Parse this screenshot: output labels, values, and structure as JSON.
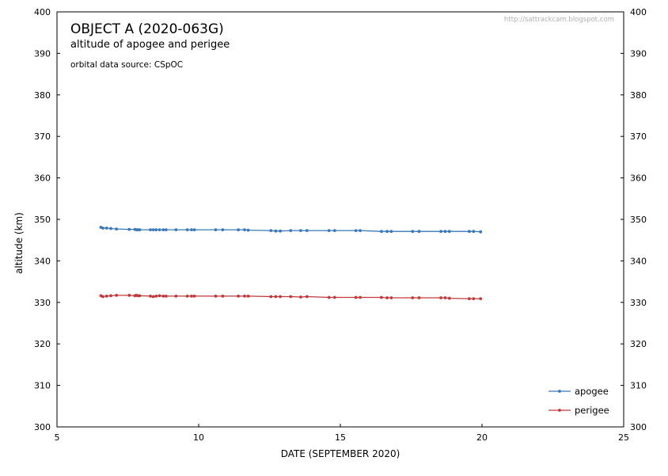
{
  "chart_data": {
    "type": "line",
    "title": "OBJECT A  (2020-063G)",
    "subtitle": "altitude of apogee and perigee",
    "source_note": "orbital data source: CSpOC",
    "watermark": "http://sattrackcam.blogspot.com",
    "xlabel": "DATE  (SEPTEMBER 2020)",
    "ylabel": "altitude (km)",
    "xlim": [
      5,
      25
    ],
    "ylim": [
      300,
      400
    ],
    "x_ticks": [
      5,
      10,
      15,
      20,
      25
    ],
    "y_ticks": [
      300,
      310,
      320,
      330,
      340,
      350,
      360,
      370,
      380,
      390,
      400
    ],
    "grid": false,
    "legend_position": "bottom-right",
    "series": [
      {
        "name": "apogee",
        "color": "#3a78b8",
        "points": [
          [
            6.55,
            348.1
          ],
          [
            6.62,
            347.9
          ],
          [
            6.75,
            347.9
          ],
          [
            6.9,
            347.8
          ],
          [
            7.1,
            347.7
          ],
          [
            7.55,
            347.6
          ],
          [
            7.75,
            347.6
          ],
          [
            7.8,
            347.5
          ],
          [
            7.85,
            347.5
          ],
          [
            7.92,
            347.5
          ],
          [
            8.3,
            347.5
          ],
          [
            8.4,
            347.5
          ],
          [
            8.5,
            347.5
          ],
          [
            8.62,
            347.5
          ],
          [
            8.75,
            347.5
          ],
          [
            8.85,
            347.5
          ],
          [
            9.2,
            347.5
          ],
          [
            9.6,
            347.5
          ],
          [
            9.75,
            347.5
          ],
          [
            9.85,
            347.5
          ],
          [
            10.6,
            347.5
          ],
          [
            10.85,
            347.5
          ],
          [
            11.4,
            347.5
          ],
          [
            11.62,
            347.5
          ],
          [
            11.75,
            347.4
          ],
          [
            12.55,
            347.3
          ],
          [
            12.72,
            347.2
          ],
          [
            12.88,
            347.2
          ],
          [
            13.25,
            347.3
          ],
          [
            13.6,
            347.3
          ],
          [
            13.82,
            347.3
          ],
          [
            14.6,
            347.3
          ],
          [
            14.8,
            347.3
          ],
          [
            15.55,
            347.3
          ],
          [
            15.7,
            347.3
          ],
          [
            16.45,
            347.1
          ],
          [
            16.65,
            347.1
          ],
          [
            16.8,
            347.1
          ],
          [
            17.55,
            347.1
          ],
          [
            17.78,
            347.1
          ],
          [
            18.55,
            347.1
          ],
          [
            18.7,
            347.1
          ],
          [
            18.85,
            347.1
          ],
          [
            19.55,
            347.1
          ],
          [
            19.7,
            347.1
          ],
          [
            19.95,
            347.0
          ]
        ]
      },
      {
        "name": "perigee",
        "color": "#c0393b",
        "points": [
          [
            6.55,
            331.6
          ],
          [
            6.62,
            331.4
          ],
          [
            6.75,
            331.5
          ],
          [
            6.9,
            331.6
          ],
          [
            7.1,
            331.7
          ],
          [
            7.55,
            331.7
          ],
          [
            7.75,
            331.6
          ],
          [
            7.8,
            331.7
          ],
          [
            7.85,
            331.6
          ],
          [
            7.92,
            331.6
          ],
          [
            8.3,
            331.5
          ],
          [
            8.4,
            331.4
          ],
          [
            8.5,
            331.5
          ],
          [
            8.62,
            331.6
          ],
          [
            8.75,
            331.5
          ],
          [
            8.85,
            331.5
          ],
          [
            9.2,
            331.5
          ],
          [
            9.6,
            331.5
          ],
          [
            9.75,
            331.5
          ],
          [
            9.85,
            331.5
          ],
          [
            10.6,
            331.5
          ],
          [
            10.85,
            331.5
          ],
          [
            11.4,
            331.5
          ],
          [
            11.62,
            331.5
          ],
          [
            11.75,
            331.5
          ],
          [
            12.55,
            331.4
          ],
          [
            12.72,
            331.4
          ],
          [
            12.88,
            331.4
          ],
          [
            13.25,
            331.4
          ],
          [
            13.6,
            331.3
          ],
          [
            13.82,
            331.4
          ],
          [
            14.6,
            331.2
          ],
          [
            14.8,
            331.2
          ],
          [
            15.55,
            331.2
          ],
          [
            15.7,
            331.2
          ],
          [
            16.45,
            331.2
          ],
          [
            16.65,
            331.1
          ],
          [
            16.8,
            331.1
          ],
          [
            17.55,
            331.1
          ],
          [
            17.78,
            331.1
          ],
          [
            18.55,
            331.1
          ],
          [
            18.7,
            331.1
          ],
          [
            18.85,
            331.0
          ],
          [
            19.55,
            330.9
          ],
          [
            19.7,
            330.9
          ],
          [
            19.95,
            330.9
          ]
        ]
      }
    ]
  }
}
